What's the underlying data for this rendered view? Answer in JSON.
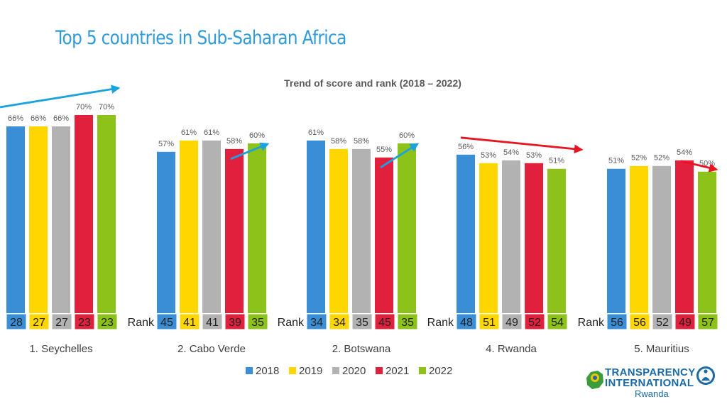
{
  "page": {
    "title": "Top 5 countries in Sub-Saharan Africa"
  },
  "logo": {
    "line1": "TRANSPARENCY",
    "line2": "INTERNATIONAL",
    "line3": "Rwanda"
  },
  "chart_data": {
    "type": "bar",
    "title": "Trend of score and rank (2018 – 2022)",
    "categories": [
      "1. Seychelles",
      "2. Cabo Verde",
      "2. Botswana",
      "4. Rwanda",
      "5. Mauritius"
    ],
    "series": [
      {
        "name": "2018",
        "color": "#3a8ed6",
        "values": [
          66,
          57,
          61,
          56,
          51
        ],
        "labels": [
          "66%",
          "57%",
          "61%",
          "56%",
          "51%"
        ],
        "ranks": [
          "28",
          "45",
          "34",
          "48",
          "56"
        ]
      },
      {
        "name": "2019",
        "color": "#ffd600",
        "values": [
          66,
          61,
          58,
          53,
          52
        ],
        "labels": [
          "66%",
          "61%",
          "58%",
          "53%",
          "52%"
        ],
        "ranks": [
          "27",
          "41",
          "34",
          "51",
          "56"
        ]
      },
      {
        "name": "2020",
        "color": "#b2b2b2",
        "values": [
          66,
          61,
          58,
          54,
          52
        ],
        "labels": [
          "66%",
          "61%",
          "58%",
          "54%",
          "52%"
        ],
        "ranks": [
          "27",
          "41",
          "35",
          "49",
          "52"
        ]
      },
      {
        "name": "2021",
        "color": "#e0203d",
        "values": [
          70,
          58,
          55,
          53,
          54
        ],
        "labels": [
          "70%",
          "58%",
          "55%",
          "53%",
          "54%"
        ],
        "ranks": [
          "23",
          "39",
          "45",
          "52",
          "49"
        ]
      },
      {
        "name": "2022",
        "color": "#8cc21a",
        "values": [
          70,
          60,
          60,
          51,
          50
        ],
        "labels": [
          "70%",
          "60%",
          "60%",
          "51%",
          "50%"
        ],
        "ranks": [
          "23",
          "35",
          "35",
          "54",
          "57"
        ]
      }
    ],
    "rank_label": "Rank",
    "ylim": [
      0,
      70
    ],
    "legend": "bottom",
    "trend_arrows": [
      {
        "group": 0,
        "from": 0,
        "to": 4,
        "direction": "up",
        "color": "#1aa3e0"
      },
      {
        "group": 1,
        "from": 3,
        "to": 4,
        "direction": "up",
        "color": "#1aa3e0"
      },
      {
        "group": 2,
        "from": 3,
        "to": 4,
        "direction": "up",
        "color": "#1aa3e0"
      },
      {
        "group": 3,
        "from": 0,
        "to": 4,
        "direction": "down",
        "color": "#e8141f"
      },
      {
        "group": 4,
        "from": 3,
        "to": 4,
        "direction": "down",
        "color": "#e8141f"
      }
    ]
  }
}
